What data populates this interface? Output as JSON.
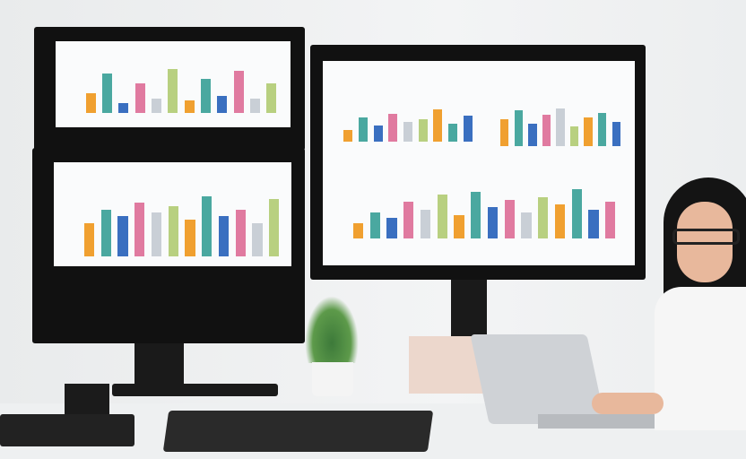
{
  "colors": {
    "wall": "#eef0f1",
    "monitor": "#111111",
    "screen": "#fafbfc",
    "accent_orange": "#f0a030",
    "accent_teal": "#4aa8a0",
    "accent_blue": "#3a6fc0",
    "accent_pink": "#e07aa0"
  },
  "charts": {
    "m1": [
      40,
      80,
      20,
      60,
      30,
      90,
      25,
      70,
      35,
      85,
      30,
      60
    ],
    "m2": [
      50,
      70,
      60,
      80,
      65,
      75,
      55,
      90,
      60,
      70,
      50,
      85
    ],
    "m3a": [
      30,
      60,
      40,
      70,
      50,
      55,
      80,
      45,
      65
    ],
    "m3b": [
      60,
      80,
      50,
      70,
      85,
      45,
      65,
      75,
      55
    ],
    "m3c": [
      30,
      50,
      40,
      70,
      55,
      85,
      45,
      90,
      60,
      75,
      50,
      80,
      65,
      95,
      55,
      70
    ]
  }
}
